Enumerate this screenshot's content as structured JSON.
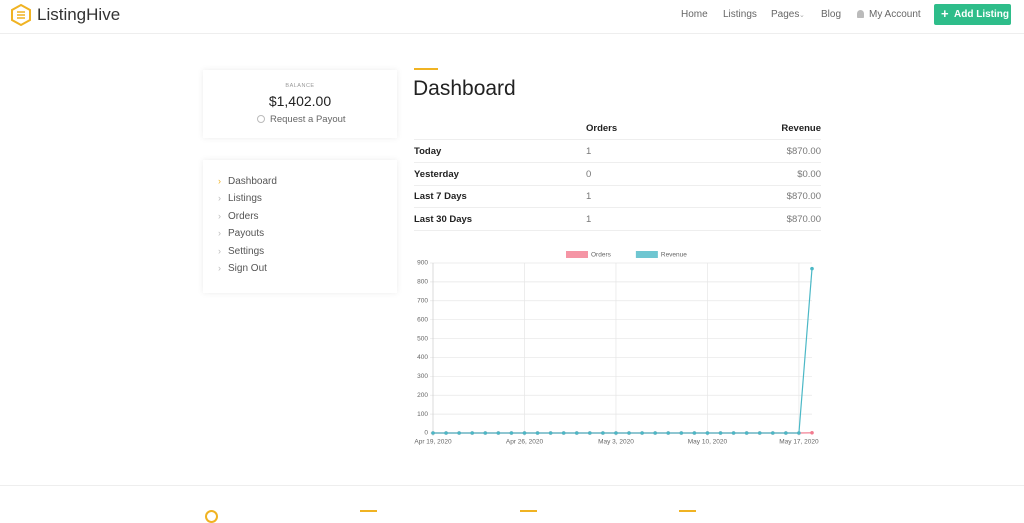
{
  "header": {
    "brand": "ListingHive",
    "nav": [
      "Home",
      "Listings",
      "Pages",
      "Blog",
      "My Account"
    ],
    "cta": "Add Listing"
  },
  "balance": {
    "label": "BALANCE",
    "amount": "$1,402.00",
    "action": "Request a Payout"
  },
  "menu": [
    "Dashboard",
    "Listings",
    "Orders",
    "Payouts",
    "Settings",
    "Sign Out"
  ],
  "dashboard": {
    "title": "Dashboard",
    "table": {
      "columns": [
        "Orders",
        "Revenue"
      ],
      "rows": [
        [
          "Today",
          1,
          "$870.00"
        ],
        [
          "Yesterday",
          0,
          "$0.00"
        ],
        [
          "Last 7 Days",
          1,
          "$870.00"
        ],
        [
          "Last 30 Days",
          1,
          "$870.00"
        ]
      ]
    }
  },
  "chart_data": {
    "type": "line",
    "categories": [
      "Apr 19, 2020",
      null,
      null,
      null,
      null,
      null,
      null,
      "Apr 26, 2020",
      null,
      null,
      null,
      null,
      null,
      null,
      "May 3, 2020",
      null,
      null,
      null,
      null,
      null,
      null,
      "May 10, 2020",
      null,
      null,
      null,
      null,
      null,
      null,
      "May 17, 2020",
      null
    ],
    "series": [
      {
        "name": "Orders",
        "color": "#f27b8f",
        "values": [
          0,
          0,
          0,
          0,
          0,
          0,
          0,
          0,
          0,
          0,
          0,
          0,
          0,
          0,
          0,
          0,
          0,
          0,
          0,
          0,
          0,
          0,
          0,
          0,
          0,
          0,
          0,
          0,
          0,
          1
        ]
      },
      {
        "name": "Revenue",
        "color": "#4bb8c6",
        "values": [
          0,
          0,
          0,
          0,
          0,
          0,
          0,
          0,
          0,
          0,
          0,
          0,
          0,
          0,
          0,
          0,
          0,
          0,
          0,
          0,
          0,
          0,
          0,
          0,
          0,
          0,
          0,
          0,
          0,
          870
        ]
      }
    ],
    "ylim": [
      0,
      900
    ],
    "yticks": [
      0,
      100,
      200,
      300,
      400,
      500,
      600,
      700,
      800,
      900
    ],
    "grid": true,
    "legend": "top"
  }
}
